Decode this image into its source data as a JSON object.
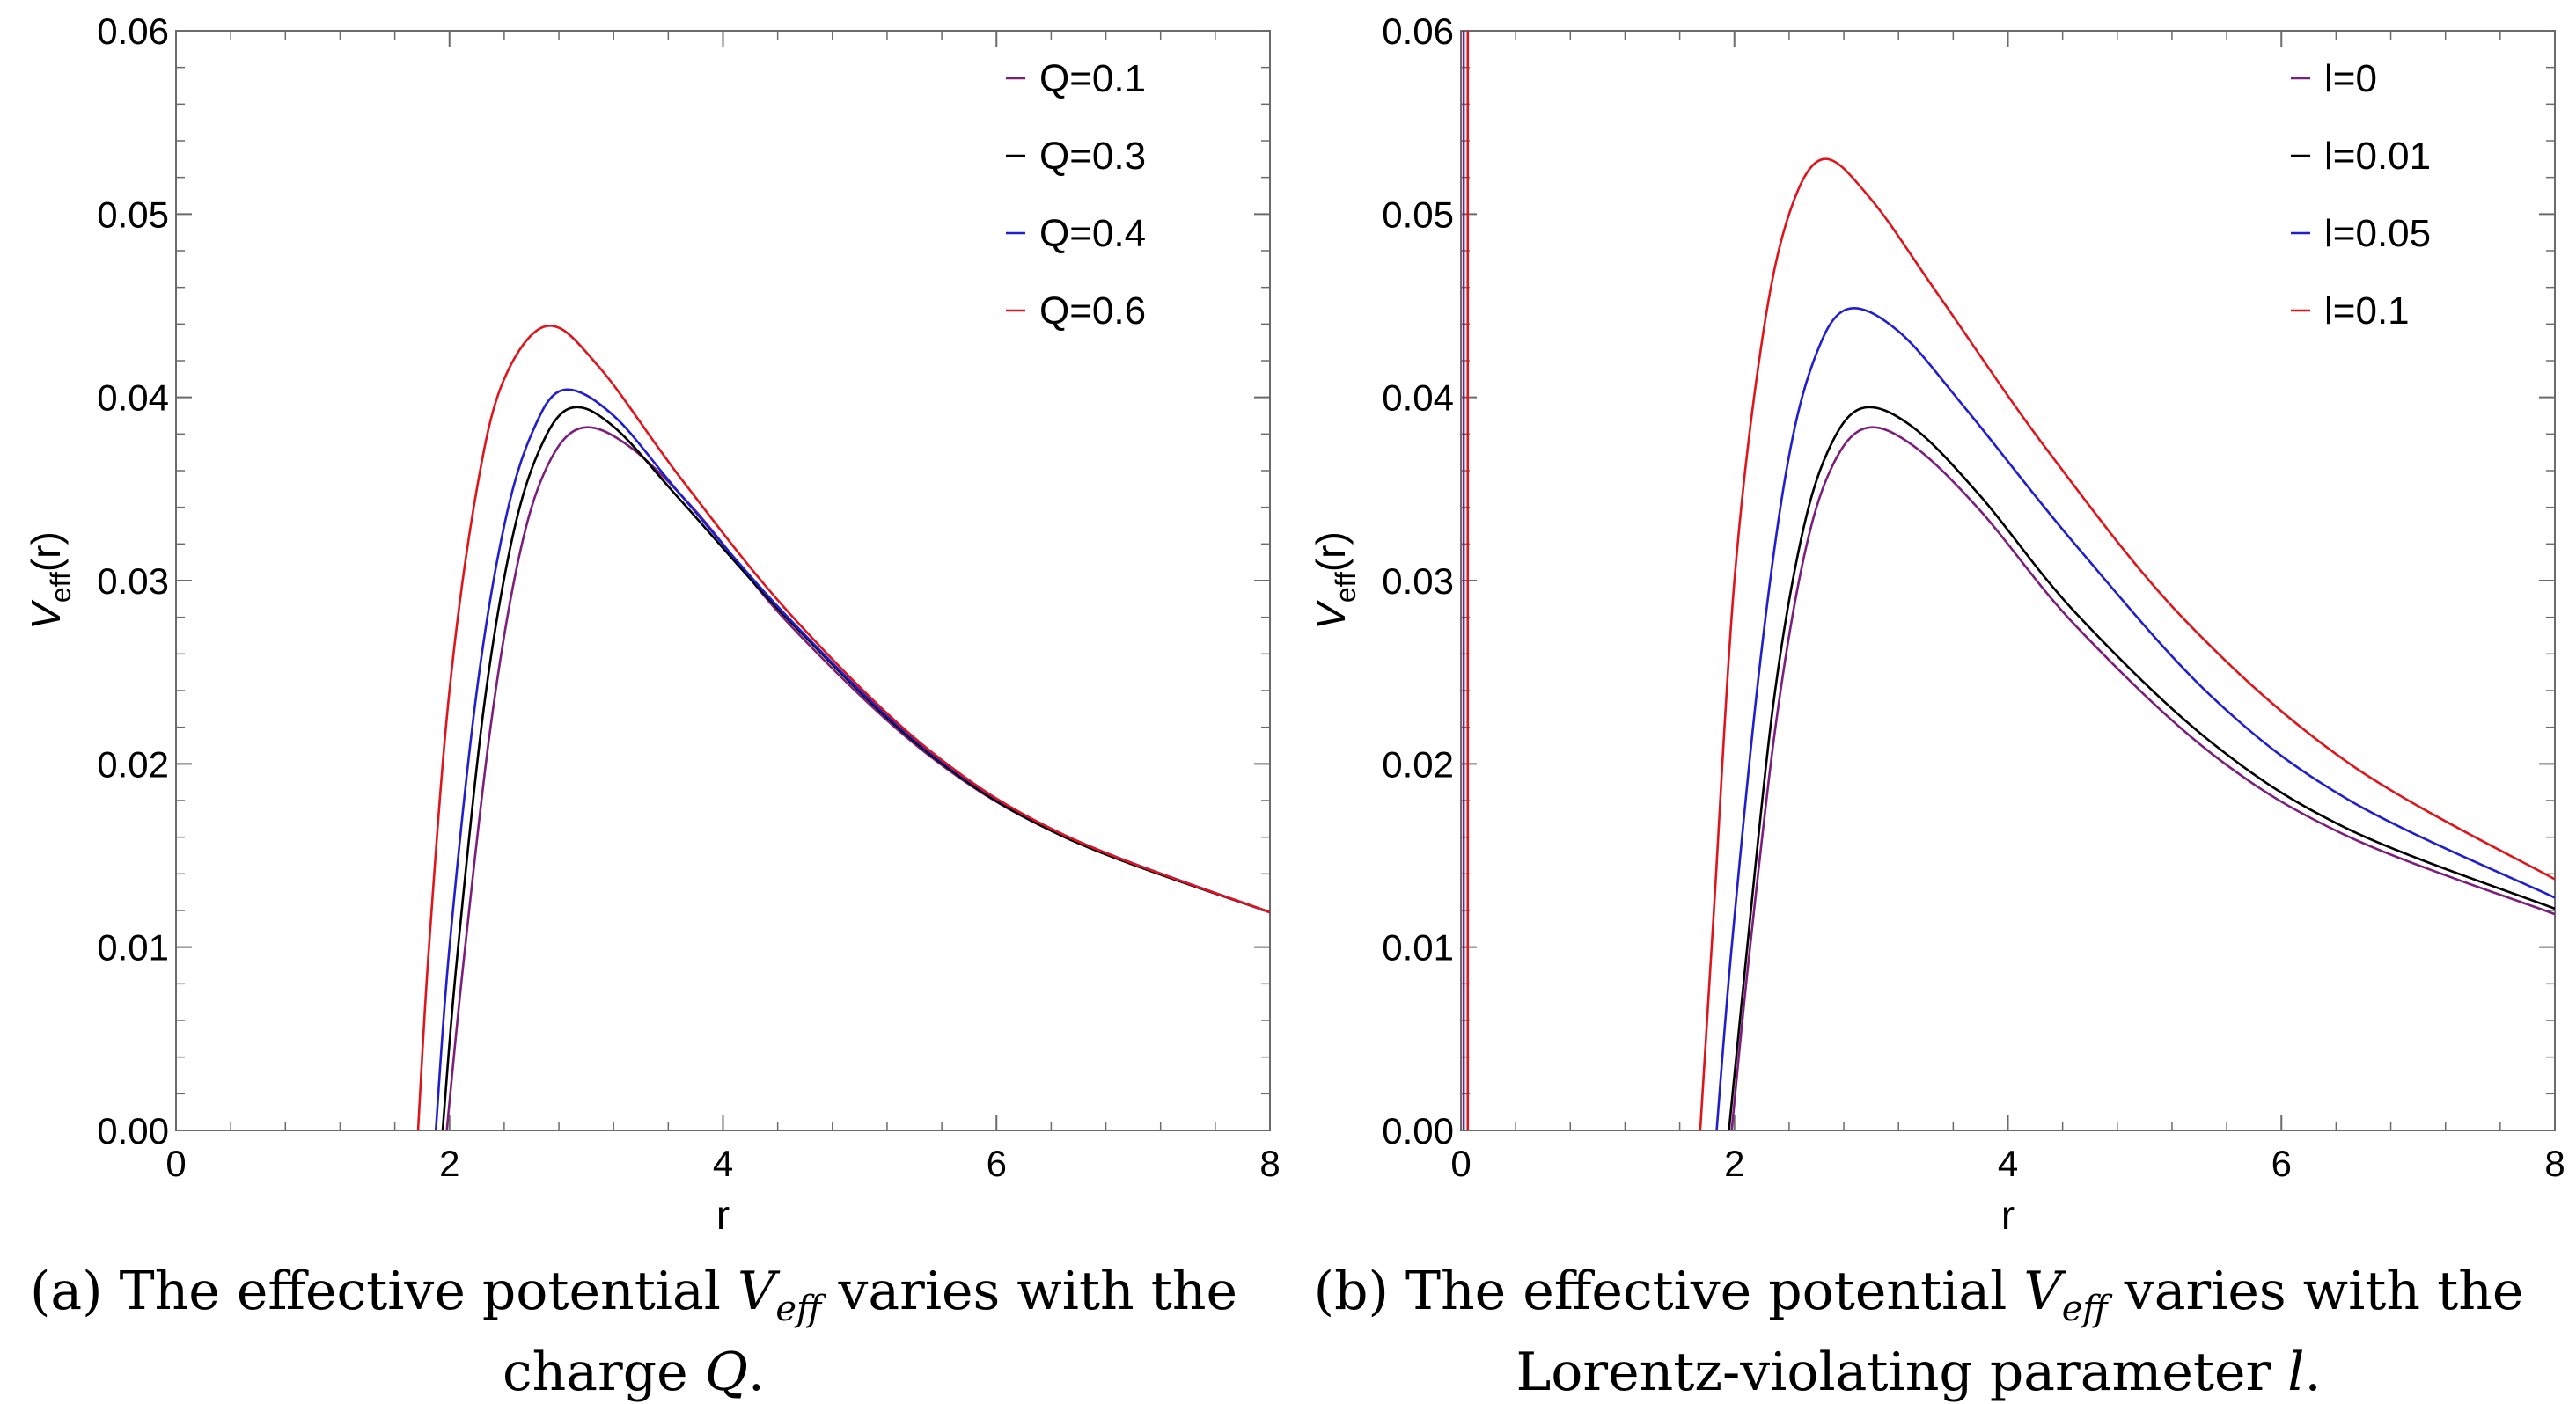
{
  "chart_data": [
    {
      "type": "line",
      "panel": "(a)",
      "xlabel": "r",
      "ylabel": "V_eff(r)",
      "xlim": [
        0,
        8
      ],
      "ylim": [
        0,
        0.06
      ],
      "xticks": [
        "0",
        "2",
        "4",
        "6",
        "8"
      ],
      "yticks": [
        "0.00",
        "0.01",
        "0.02",
        "0.03",
        "0.04",
        "0.05",
        "0.06"
      ],
      "grid": false,
      "legend_position": "top-right",
      "series": [
        {
          "name": "Q=0.1",
          "color": "#7b1f7b",
          "x": [
            1.98,
            2.1,
            2.3,
            2.5,
            2.7,
            2.95,
            3.3,
            3.8,
            4.5,
            5.5,
            6.5,
            8.0
          ],
          "y": [
            0.0,
            0.009,
            0.022,
            0.031,
            0.036,
            0.0383,
            0.0374,
            0.0338,
            0.0275,
            0.0205,
            0.016,
            0.0119
          ]
        },
        {
          "name": "Q=0.3",
          "color": "#000000",
          "x": [
            1.95,
            2.05,
            2.25,
            2.45,
            2.65,
            2.88,
            3.2,
            3.7,
            4.5,
            5.5,
            6.5,
            8.0
          ],
          "y": [
            0.0,
            0.009,
            0.023,
            0.032,
            0.037,
            0.0394,
            0.0384,
            0.0343,
            0.0277,
            0.0206,
            0.016,
            0.0119
          ]
        },
        {
          "name": "Q=0.4",
          "color": "#1f1fcf",
          "x": [
            1.9,
            2.0,
            2.2,
            2.4,
            2.6,
            2.83,
            3.2,
            3.7,
            4.5,
            5.5,
            6.5,
            8.0
          ],
          "y": [
            0.0,
            0.01,
            0.024,
            0.033,
            0.038,
            0.0404,
            0.039,
            0.0346,
            0.0278,
            0.0207,
            0.0161,
            0.0119
          ]
        },
        {
          "name": "Q=0.6",
          "color": "#e0151b",
          "x": [
            1.77,
            1.85,
            2.0,
            2.2,
            2.4,
            2.72,
            3.1,
            3.7,
            4.5,
            5.5,
            6.5,
            8.0
          ],
          "y": [
            0.0,
            0.01,
            0.024,
            0.035,
            0.041,
            0.0439,
            0.0416,
            0.0355,
            0.0281,
            0.0208,
            0.0161,
            0.0119
          ]
        }
      ]
    },
    {
      "type": "line",
      "panel": "(b)",
      "xlabel": "r",
      "ylabel": "V_eff(r)",
      "xlim": [
        0,
        8
      ],
      "ylim": [
        0,
        0.06
      ],
      "xticks": [
        "0",
        "2",
        "4",
        "6",
        "8"
      ],
      "yticks": [
        "0.00",
        "0.01",
        "0.02",
        "0.03",
        "0.04",
        "0.05",
        "0.06"
      ],
      "grid": false,
      "legend_position": "top-right",
      "series": [
        {
          "name": "l=0",
          "color": "#7b1f7b",
          "x": [
            1.98,
            2.1,
            2.3,
            2.5,
            2.7,
            2.95,
            3.3,
            3.8,
            4.5,
            5.5,
            6.5,
            8.0
          ],
          "y": [
            0.0,
            0.009,
            0.022,
            0.031,
            0.036,
            0.0383,
            0.0374,
            0.0338,
            0.0275,
            0.0205,
            0.016,
            0.0118
          ]
        },
        {
          "name": "l=0.01",
          "color": "#000000",
          "x": [
            1.96,
            2.08,
            2.28,
            2.48,
            2.68,
            2.93,
            3.3,
            3.8,
            4.5,
            5.5,
            6.5,
            8.0
          ],
          "y": [
            0.0,
            0.009,
            0.023,
            0.032,
            0.037,
            0.0394,
            0.0384,
            0.0346,
            0.0282,
            0.0211,
            0.0164,
            0.0121
          ]
        },
        {
          "name": "l=0.05",
          "color": "#1f1fcf",
          "x": [
            1.87,
            1.98,
            2.18,
            2.38,
            2.58,
            2.82,
            3.2,
            3.7,
            4.5,
            5.5,
            6.5,
            8.0
          ],
          "y": [
            0.0,
            0.01,
            0.025,
            0.036,
            0.042,
            0.0448,
            0.0436,
            0.0393,
            0.0319,
            0.0236,
            0.018,
            0.0127
          ]
        },
        {
          "name": "l=0.1",
          "color": "#e0151b",
          "x": [
            1.75,
            1.85,
            2.0,
            2.2,
            2.4,
            2.65,
            3.0,
            3.5,
            4.3,
            5.3,
            6.5,
            8.0
          ],
          "y": [
            0.0,
            0.012,
            0.03,
            0.043,
            0.05,
            0.053,
            0.0508,
            0.0455,
            0.037,
            0.0278,
            0.02,
            0.0137
          ]
        },
        {
          "name": "",
          "color": "#7b1f7b",
          "x": [
            0.02,
            0.02
          ],
          "y": [
            0.0,
            0.06
          ]
        },
        {
          "name": "",
          "color": "#e0151b",
          "x": [
            0.05,
            0.05
          ],
          "y": [
            0.0,
            0.06
          ]
        }
      ]
    }
  ],
  "captions": {
    "a": {
      "prefix": "(a) The effective potential",
      "var": "V",
      "sub": "eff",
      "suffix": "varies with the",
      "line2_text": "charge",
      "line2_var": "Q",
      "line2_end": "."
    },
    "b": {
      "prefix": "(b) The effective potential",
      "var": "V",
      "sub": "eff",
      "suffix": "varies with the",
      "line2_text": "Lorentz-violating parameter",
      "line2_var": "l",
      "line2_end": "."
    }
  }
}
